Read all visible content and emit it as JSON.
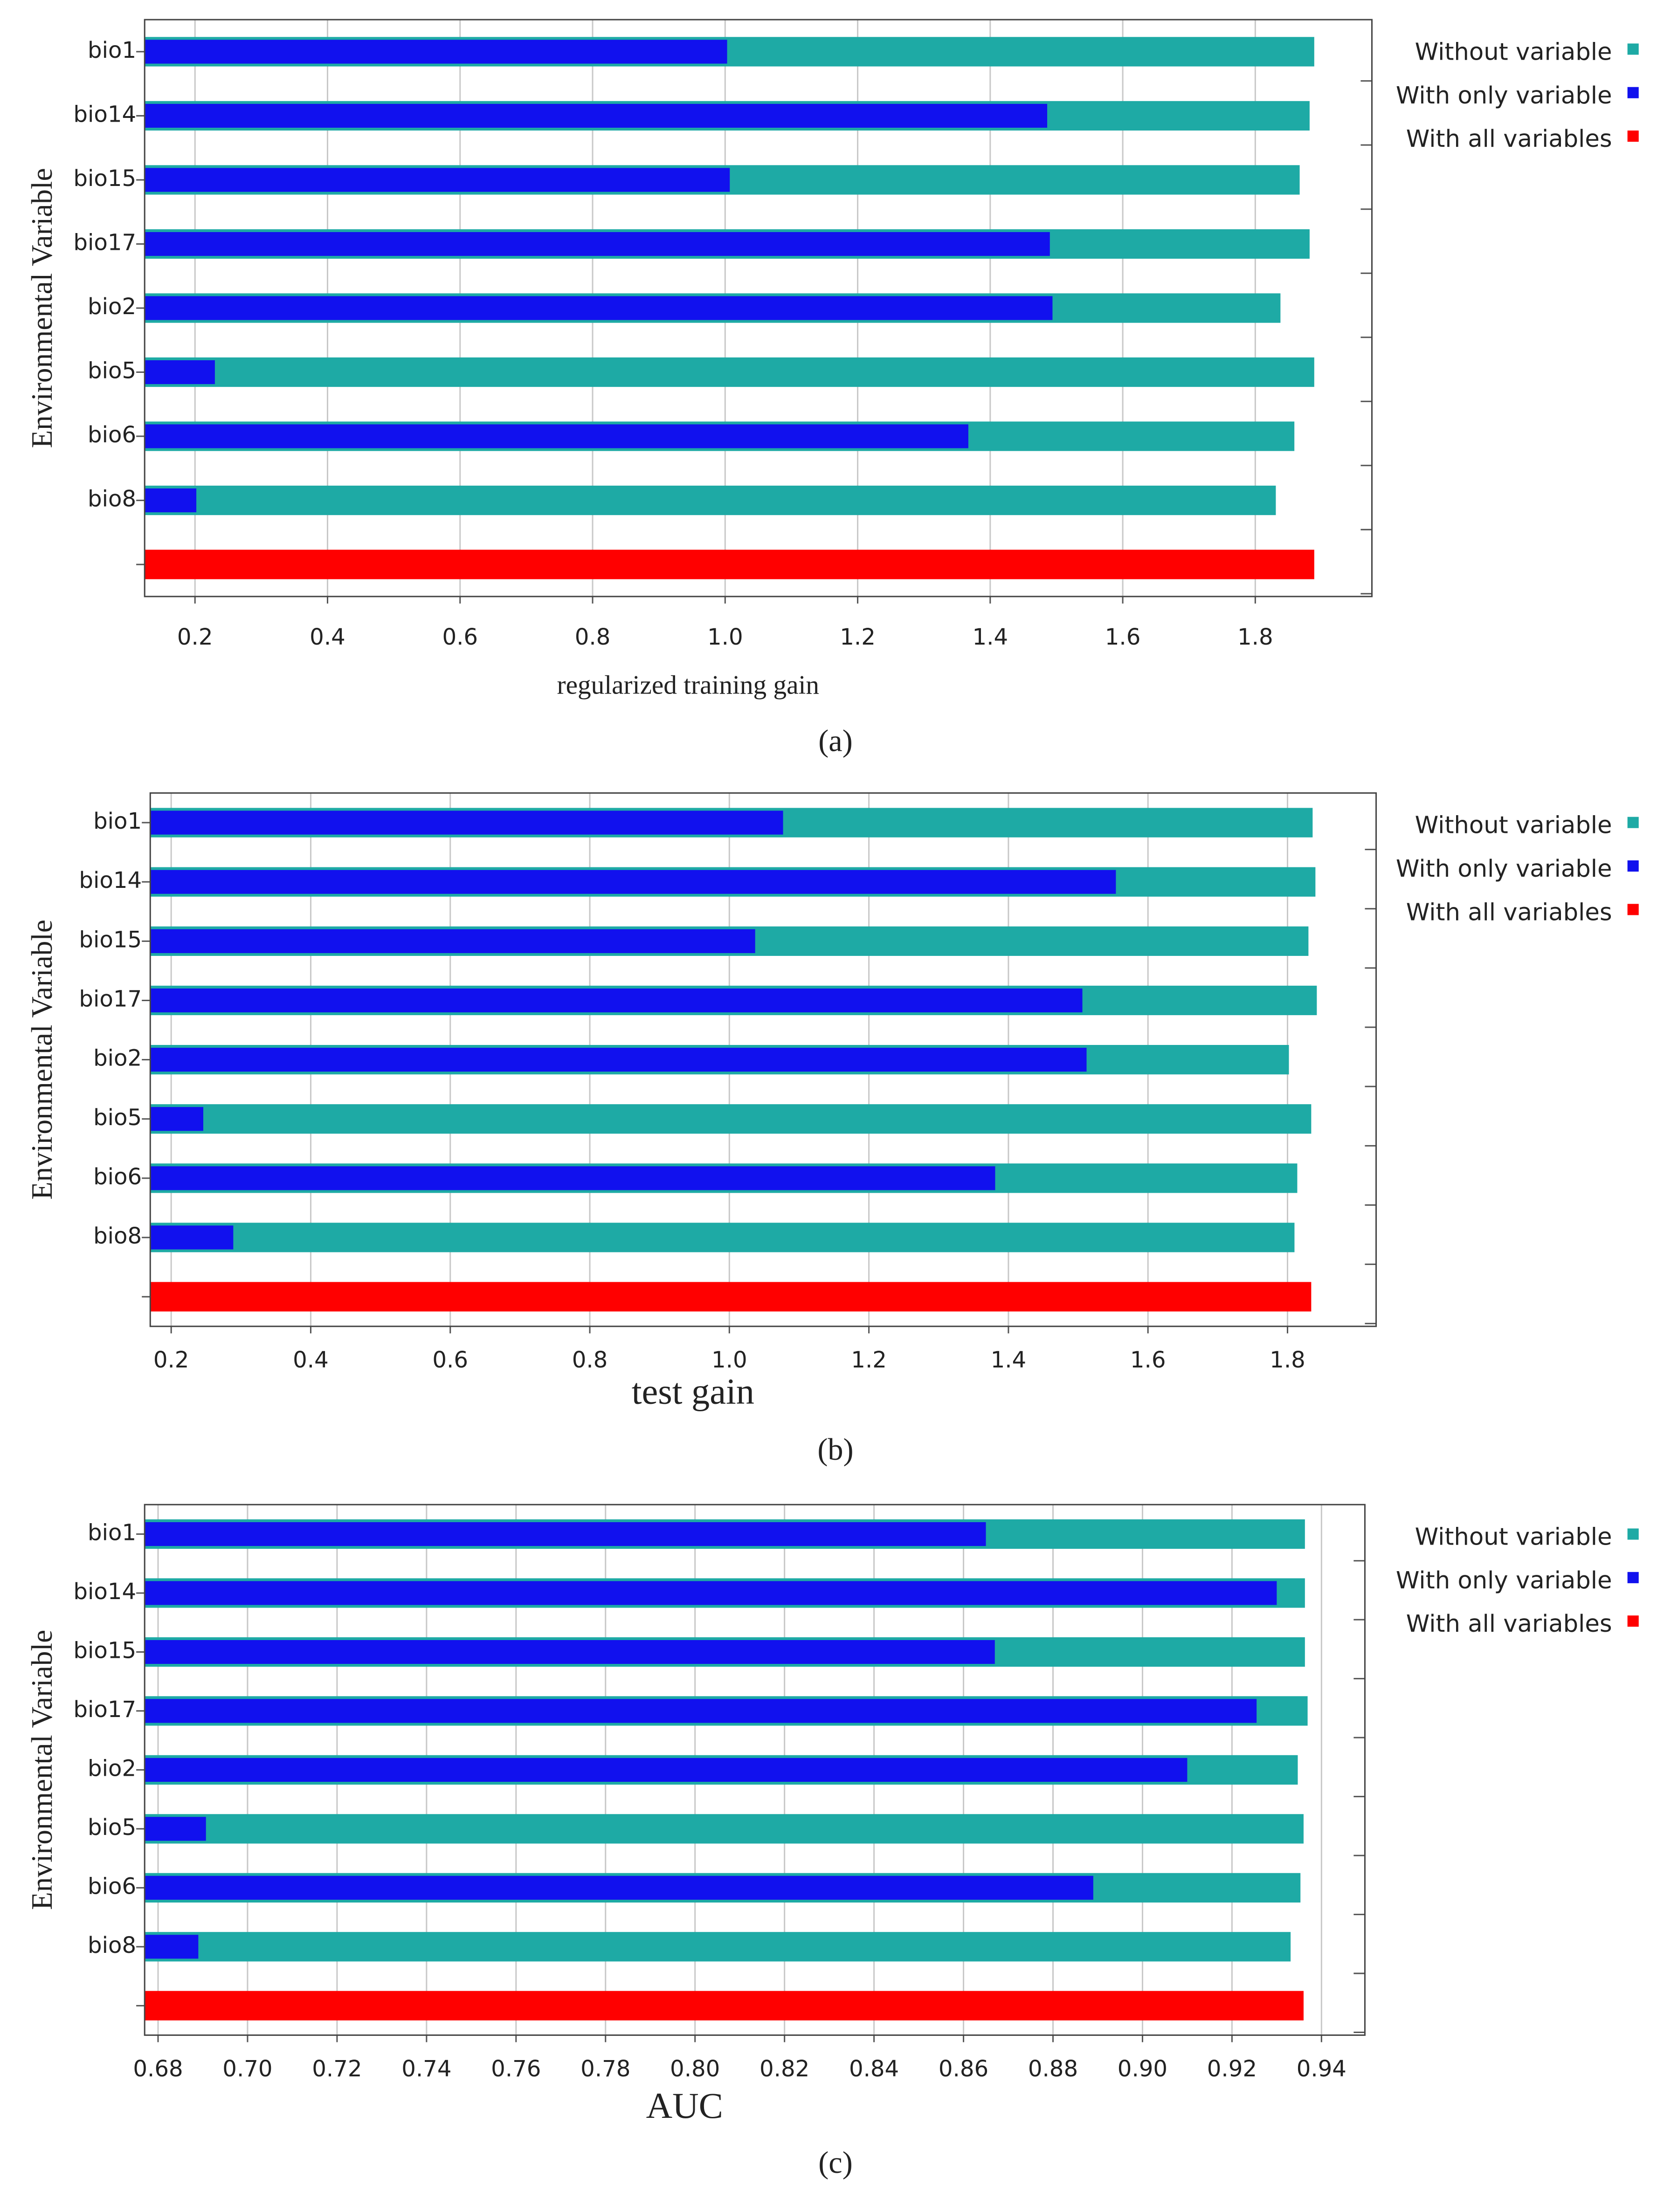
{
  "chart_data": [
    {
      "type": "bar",
      "orientation": "horizontal",
      "caption": "(a)",
      "xlabel": "regularized training gain",
      "ylabel": "Environmental Variable",
      "categories": [
        "bio1",
        "bio14",
        "bio15",
        "bio17",
        "bio2",
        "bio5",
        "bio6",
        "bio8",
        null
      ],
      "series": [
        {
          "name": "Without variable",
          "color": "#1eaaa5",
          "values": [
            1.889,
            1.882,
            1.867,
            1.882,
            1.838,
            1.889,
            1.859,
            1.831,
            null
          ]
        },
        {
          "name": "With only variable",
          "color": "#1111ee",
          "values": [
            1.003,
            1.486,
            1.007,
            1.49,
            1.494,
            0.23,
            1.367,
            0.202,
            null
          ]
        },
        {
          "name": "With all variables",
          "color": "#ff0000",
          "values": [
            null,
            null,
            null,
            null,
            null,
            null,
            null,
            null,
            1.889
          ]
        }
      ],
      "xlim": [
        0.124,
        1.976
      ],
      "xticks": [
        0.2,
        0.4,
        0.6,
        0.8,
        {
          "value": 1,
          "label": "1.0"
        },
        1.2,
        1.4,
        1.6,
        1.8
      ],
      "grid": true,
      "legend": "outside right"
    },
    {
      "type": "bar",
      "orientation": "horizontal",
      "caption": "(b)",
      "xlabel": "test gain",
      "ylabel": "Environmental Variable",
      "categories": [
        "bio1",
        "bio14",
        "bio15",
        "bio17",
        "bio2",
        "bio5",
        "bio6",
        "bio8",
        null
      ],
      "series": [
        {
          "name": "Without variable",
          "color": "#1eaaa5",
          "values": [
            1.836,
            1.84,
            1.83,
            1.842,
            1.802,
            1.834,
            1.814,
            1.81,
            null
          ]
        },
        {
          "name": "With only variable",
          "color": "#1111ee",
          "values": [
            1.077,
            1.554,
            1.037,
            1.506,
            1.512,
            0.246,
            1.381,
            0.289,
            null
          ]
        },
        {
          "name": "With all variables",
          "color": "#ff0000",
          "values": [
            null,
            null,
            null,
            null,
            null,
            null,
            null,
            null,
            1.834
          ]
        }
      ],
      "xlim": [
        0.17,
        1.927
      ],
      "xticks": [
        0.2,
        0.4,
        0.6,
        0.8,
        {
          "value": 1,
          "label": "1.0"
        },
        1.2,
        1.4,
        1.6,
        1.8
      ],
      "grid": true,
      "legend": "outside right"
    },
    {
      "type": "bar",
      "orientation": "horizontal",
      "caption": "(c)",
      "xlabel": "AUC",
      "ylabel": "Environmental Variable",
      "categories": [
        "bio1",
        "bio14",
        "bio15",
        "bio17",
        "bio2",
        "bio5",
        "bio6",
        "bio8",
        null
      ],
      "series": [
        {
          "name": "Without variable",
          "color": "#1eaaa5",
          "values": [
            0.9363,
            0.9363,
            0.9363,
            0.9369,
            0.9347,
            0.936,
            0.9353,
            0.9331,
            null
          ]
        },
        {
          "name": "With only variable",
          "color": "#1111ee",
          "values": [
            0.865,
            0.93,
            0.867,
            0.9255,
            0.91,
            0.6907,
            0.889,
            0.689,
            null
          ]
        },
        {
          "name": "With all variables",
          "color": "#ff0000",
          "values": [
            null,
            null,
            null,
            null,
            null,
            null,
            null,
            null,
            0.936
          ]
        }
      ],
      "xlim": [
        0.677,
        0.9497
      ],
      "xticks": [
        0.68,
        {
          "value": 0.7,
          "label": "0.70"
        },
        0.72,
        0.74,
        0.76,
        0.78,
        {
          "value": 0.8,
          "label": "0.80"
        },
        0.82,
        0.84,
        0.86,
        0.88,
        {
          "value": 0.9,
          "label": "0.90"
        },
        0.92,
        0.94
      ],
      "grid": true,
      "legend": "outside right"
    }
  ]
}
